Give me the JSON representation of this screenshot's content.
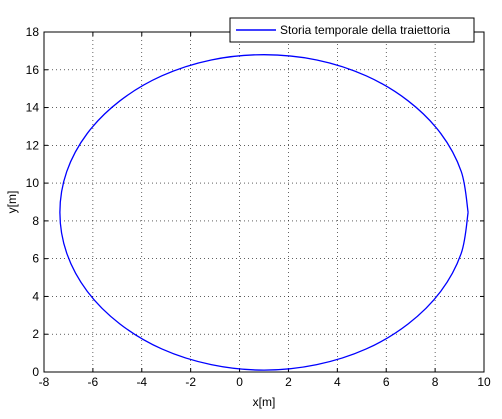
{
  "chart_data": {
    "type": "line",
    "xlabel": "x[m]",
    "ylabel": "y[m]",
    "xlim": [
      -8,
      10
    ],
    "ylim": [
      0,
      18
    ],
    "xticks": [
      -8,
      -6,
      -4,
      -2,
      0,
      2,
      4,
      6,
      8,
      10
    ],
    "yticks": [
      0,
      2,
      4,
      6,
      8,
      10,
      12,
      14,
      16,
      18
    ],
    "grid": true,
    "legend": "top-right",
    "series": [
      {
        "name": "Storia temporale della traiettoria",
        "color": "#0000ff",
        "x": [
          9.35,
          9.07,
          8.23,
          6.9,
          5.18,
          3.16,
          1,
          -1.16,
          -3.18,
          -4.9,
          -6.23,
          -7.07,
          -7.35,
          -7.07,
          -6.23,
          -4.9,
          -3.18,
          -1.16,
          1,
          3.16,
          5.18,
          6.9,
          8.23,
          9.07,
          9.35
        ],
        "values": [
          8.45,
          10.61,
          12.63,
          14.35,
          15.68,
          16.52,
          16.8,
          16.52,
          15.68,
          14.35,
          12.63,
          10.61,
          8.45,
          6.29,
          4.27,
          2.55,
          1.22,
          0.39,
          0.1,
          0.39,
          1.22,
          2.55,
          4.27,
          6.29,
          8.45
        ]
      }
    ]
  }
}
